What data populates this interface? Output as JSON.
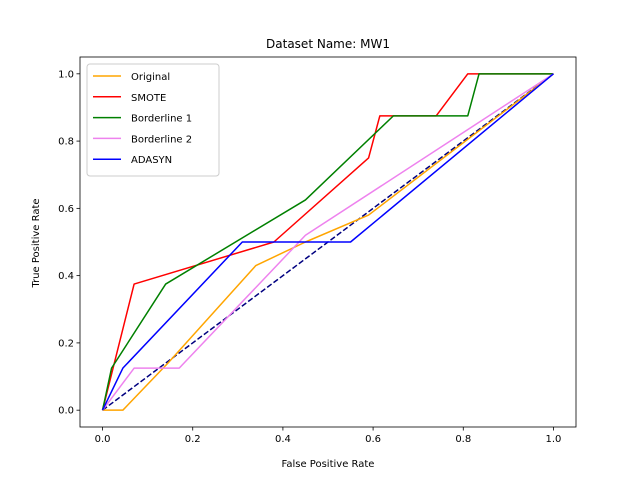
{
  "chart_data": {
    "type": "line",
    "title": "Dataset Name: MW1",
    "xlabel": "False Positive Rate",
    "ylabel": "True Positive Rate",
    "xlim": [
      -0.05,
      1.05
    ],
    "ylim": [
      -0.05,
      1.05
    ],
    "xticks": [
      "0.0",
      "0.2",
      "0.4",
      "0.6",
      "0.8",
      "1.0"
    ],
    "yticks": [
      "0.0",
      "0.2",
      "0.4",
      "0.6",
      "0.8",
      "1.0"
    ],
    "grid": false,
    "legend_position": "upper-left",
    "series": [
      {
        "name": "Original",
        "color": "#ffa500",
        "x": [
          0.0,
          0.045,
          0.145,
          0.34,
          0.45,
          0.59,
          1.0
        ],
        "y": [
          0.0,
          0.0,
          0.14,
          0.43,
          0.5,
          0.58,
          1.0
        ]
      },
      {
        "name": "SMOTE",
        "color": "#ff0000",
        "x": [
          0.0,
          0.07,
          0.38,
          0.59,
          0.615,
          0.74,
          0.81,
          1.0
        ],
        "y": [
          0.0,
          0.375,
          0.5,
          0.75,
          0.875,
          0.875,
          1.0,
          1.0
        ]
      },
      {
        "name": "Borderline 1",
        "color": "#008000",
        "x": [
          0.0,
          0.02,
          0.14,
          0.45,
          0.645,
          0.81,
          0.835,
          1.0
        ],
        "y": [
          0.0,
          0.125,
          0.375,
          0.625,
          0.875,
          0.875,
          1.0,
          1.0
        ]
      },
      {
        "name": "Borderline 2",
        "color": "#ee82ee",
        "x": [
          0.0,
          0.07,
          0.17,
          0.45,
          1.0
        ],
        "y": [
          0.0,
          0.125,
          0.125,
          0.52,
          1.0
        ]
      },
      {
        "name": "ADASYN",
        "color": "#0000ff",
        "x": [
          0.0,
          0.045,
          0.31,
          0.55,
          1.0
        ],
        "y": [
          0.0,
          0.125,
          0.5,
          0.5,
          1.0
        ]
      }
    ],
    "reference_line": {
      "color": "#000080",
      "style": "dashed",
      "x": [
        0.0,
        1.0
      ],
      "y": [
        0.0,
        1.0
      ]
    }
  }
}
